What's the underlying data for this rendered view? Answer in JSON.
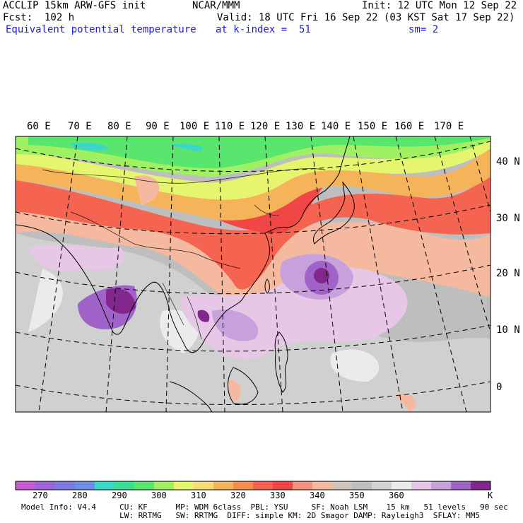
{
  "header": {
    "model": "ACCLIP 15km ARW-GFS init",
    "org": "NCAR/MMM",
    "init": "Init: 12 UTC Mon 12 Sep 22",
    "fcst": "Fcst:  102 h",
    "valid": "Valid: 18 UTC Fri 16 Sep 22 (03 KST Sat 17 Sep 22)",
    "field": "Equivalent potential temperature",
    "level": "at k-index =  51",
    "smooth": "sm= 2"
  },
  "map": {
    "lon_labels": [
      "60 E",
      "70 E",
      "80 E",
      "90 E",
      "100 E",
      "110 E",
      "120 E",
      "130 E",
      "140 E",
      "150 E",
      "160 E",
      "170 E"
    ],
    "lat_labels": [
      "40 N",
      "30 N",
      "20 N",
      "10 N",
      "0"
    ]
  },
  "colorbar": {
    "colors": [
      "#c85ad2",
      "#9f64d9",
      "#7f7ae3",
      "#6f8ee8",
      "#3cd6c8",
      "#3cdc96",
      "#5ae66e",
      "#a0f064",
      "#e6f56e",
      "#f5dc78",
      "#f5b45a",
      "#f58c50",
      "#f56450",
      "#f04646",
      "#f5917d",
      "#f5b9a0",
      "#d2c3b9",
      "#bebebe",
      "#d2d2d2",
      "#ebebeb",
      "#e6c8e6",
      "#c8a0dc",
      "#a064c8",
      "#82288c"
    ],
    "labels": [
      "270",
      "280",
      "290",
      "300",
      "310",
      "320",
      "330",
      "340",
      "350",
      "360"
    ],
    "unit": "K"
  },
  "footer": {
    "line1": "Model Info: V4.4     CU: KF      MP: WDM 6class  PBL: YSU     SF: Noah LSM    15 km   51 levels   90 sec",
    "line2": "                     LW: RRTMG   SW: RRTMG  DIFF: simple KM: 2D Smagor DAMP: Rayleigh3  SFLAY: MM5"
  }
}
